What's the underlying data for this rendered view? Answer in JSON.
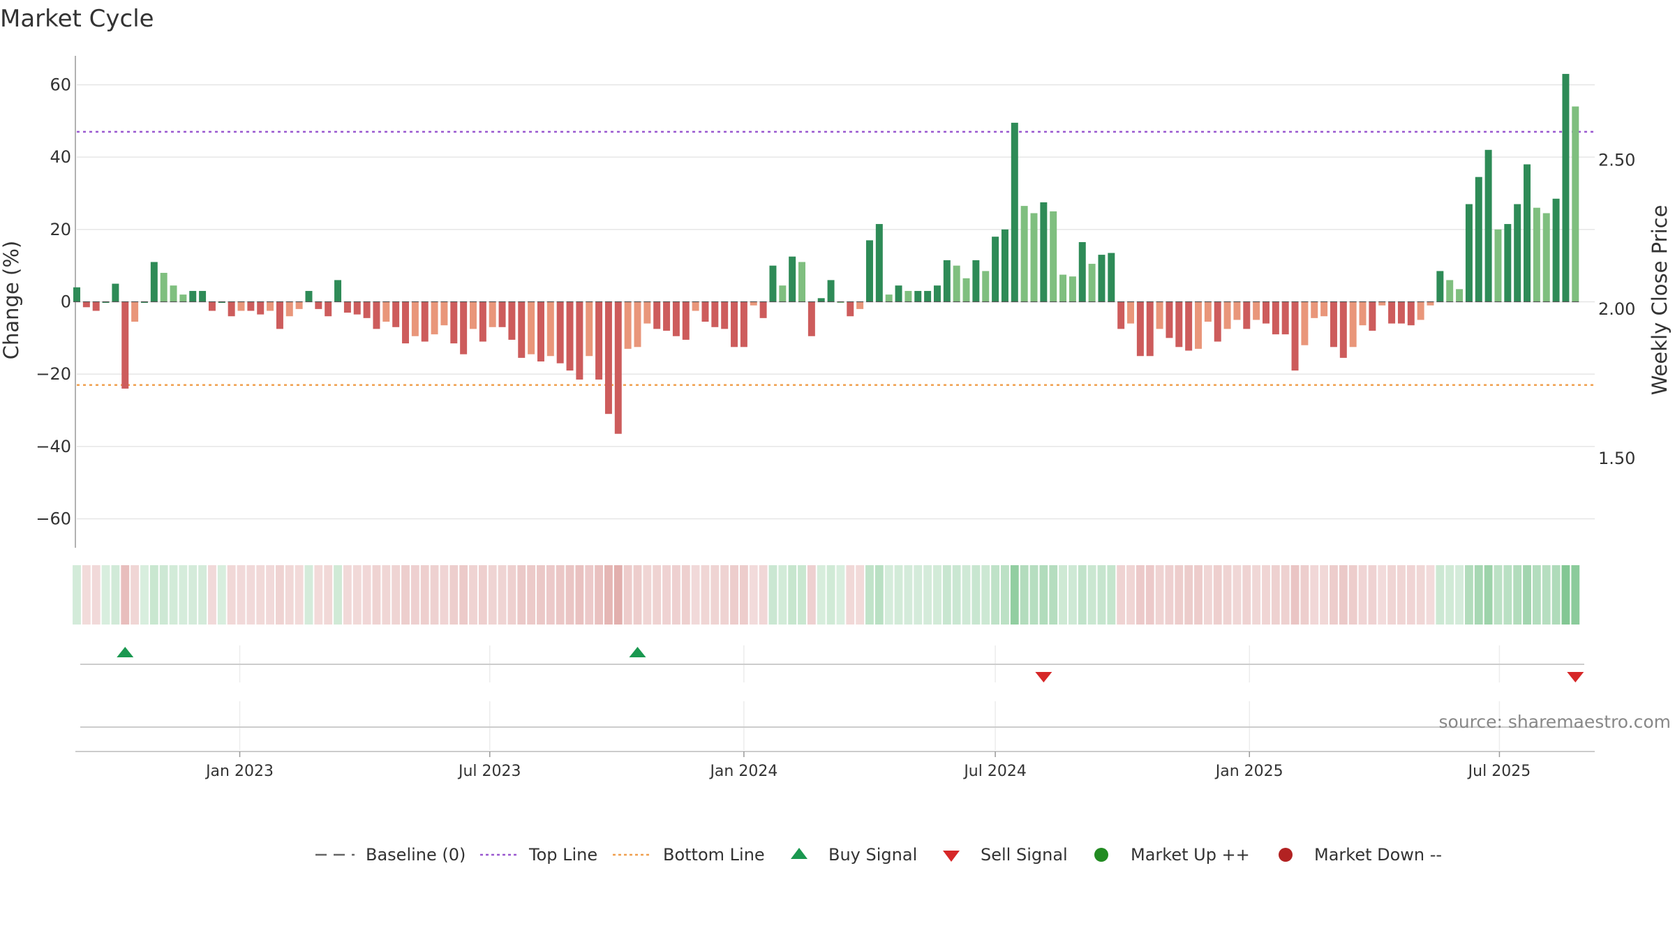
{
  "title": "Market Cycle",
  "source": "source: sharemaestro.com",
  "colors": {
    "up_strong": "#2e8b57",
    "up_light": "#7fbf7f",
    "down_strong": "#cd5c5c",
    "down_light": "#e9967a",
    "top_line": "#9b59d0",
    "bottom_line": "#f0a050",
    "buy": "#1a9850",
    "sell": "#d62728",
    "market_up": "#228b22",
    "market_down": "#b22222"
  },
  "legend": [
    {
      "label": "Baseline (0)",
      "icon": "dash-line"
    },
    {
      "label": "Top Line",
      "icon": "dotted-purple"
    },
    {
      "label": "Bottom Line",
      "icon": "dotted-orange"
    },
    {
      "label": "Buy Signal",
      "icon": "triangle-up"
    },
    {
      "label": "Sell Signal",
      "icon": "triangle-down"
    },
    {
      "label": "Market Up ++",
      "icon": "dot-green"
    },
    {
      "label": "Market Down --",
      "icon": "dot-red"
    }
  ],
  "chart_data": {
    "type": "bar",
    "ylabel": "Change (%)",
    "ylabel_right": "Weekly Close Price",
    "ylim": [
      -68,
      68
    ],
    "yticks": [
      60,
      40,
      20,
      0,
      -20,
      -40,
      -60
    ],
    "yticks_display": [
      "60",
      "40",
      "20",
      "0",
      "−20",
      "−40",
      "−60"
    ],
    "right_ylim": [
      1.2,
      2.85
    ],
    "right_yticks": [
      2.5,
      2.0,
      1.5
    ],
    "right_yticks_display": [
      "2.50",
      "2.00",
      "1.50"
    ],
    "top_line": 47,
    "bottom_line": -23,
    "x_start": "2022-09-05",
    "x_end": "2025-09-08",
    "xticks": [
      {
        "date": "2023-01-01",
        "label": "Jan 2023"
      },
      {
        "date": "2023-07-01",
        "label": "Jul 2023"
      },
      {
        "date": "2024-01-01",
        "label": "Jan 2024"
      },
      {
        "date": "2024-07-01",
        "label": "Jul 2024"
      },
      {
        "date": "2025-01-01",
        "label": "Jan 2025"
      },
      {
        "date": "2025-07-01",
        "label": "Jul 2025"
      }
    ],
    "x_first": "2022-09-05",
    "interval_days": 7,
    "values": [
      4,
      -1.5,
      -2.5,
      0,
      5,
      -24,
      -5.5,
      0,
      11,
      8,
      4.5,
      2,
      3,
      3,
      -2.5,
      0,
      -4,
      -2.5,
      -2.5,
      -3.5,
      -2.5,
      -7.5,
      -4,
      -2,
      3,
      -2,
      -4,
      6,
      -3,
      -3.5,
      -4.5,
      -7.5,
      -5.5,
      -7,
      -11.5,
      -9.5,
      -11,
      -9,
      -6.5,
      -11.5,
      -14.5,
      -7.5,
      -11,
      -7,
      -7,
      -10.5,
      -15.5,
      -14.5,
      -16.5,
      -15,
      -17,
      -19,
      -21.5,
      -15,
      -21.5,
      -31,
      -36.5,
      -13,
      -12.5,
      -6,
      -7.5,
      -8,
      -9.5,
      -10.5,
      -2.5,
      -5.5,
      -7,
      -7.5,
      -12.5,
      -12.5,
      -1,
      -4.5,
      10,
      4.5,
      12.5,
      11,
      -9.5,
      1,
      6,
      0,
      -4,
      -2,
      17,
      21.5,
      2,
      4.5,
      3,
      3,
      3,
      4.5,
      11.5,
      10,
      6.5,
      11.5,
      8.5,
      18,
      20,
      49.5,
      26.5,
      24.5,
      27.5,
      25,
      7.5,
      7,
      16.5,
      10.5,
      13,
      13.5,
      -7.5,
      -6,
      -15,
      -15,
      -7.5,
      -10,
      -12.5,
      -13.5,
      -13,
      -5.5,
      -11,
      -7.5,
      -5,
      -7.5,
      -5,
      -6,
      -9,
      -9,
      -19,
      -12,
      -4.5,
      -4,
      -12.5,
      -15.5,
      -12.5,
      -6.5,
      -8,
      -1,
      -6,
      -6,
      -6.5,
      -5,
      -1,
      8.5,
      6,
      3.5,
      27,
      34.5,
      42,
      20,
      21.5,
      27,
      38,
      26,
      24.5,
      28.5,
      63,
      54
    ],
    "signals": [
      {
        "date": "2022-10-10",
        "type": "buy"
      },
      {
        "date": "2023-10-16",
        "type": "buy"
      },
      {
        "date": "2024-08-05",
        "type": "sell"
      },
      {
        "date": "2025-08-25",
        "type": "sell"
      }
    ]
  }
}
